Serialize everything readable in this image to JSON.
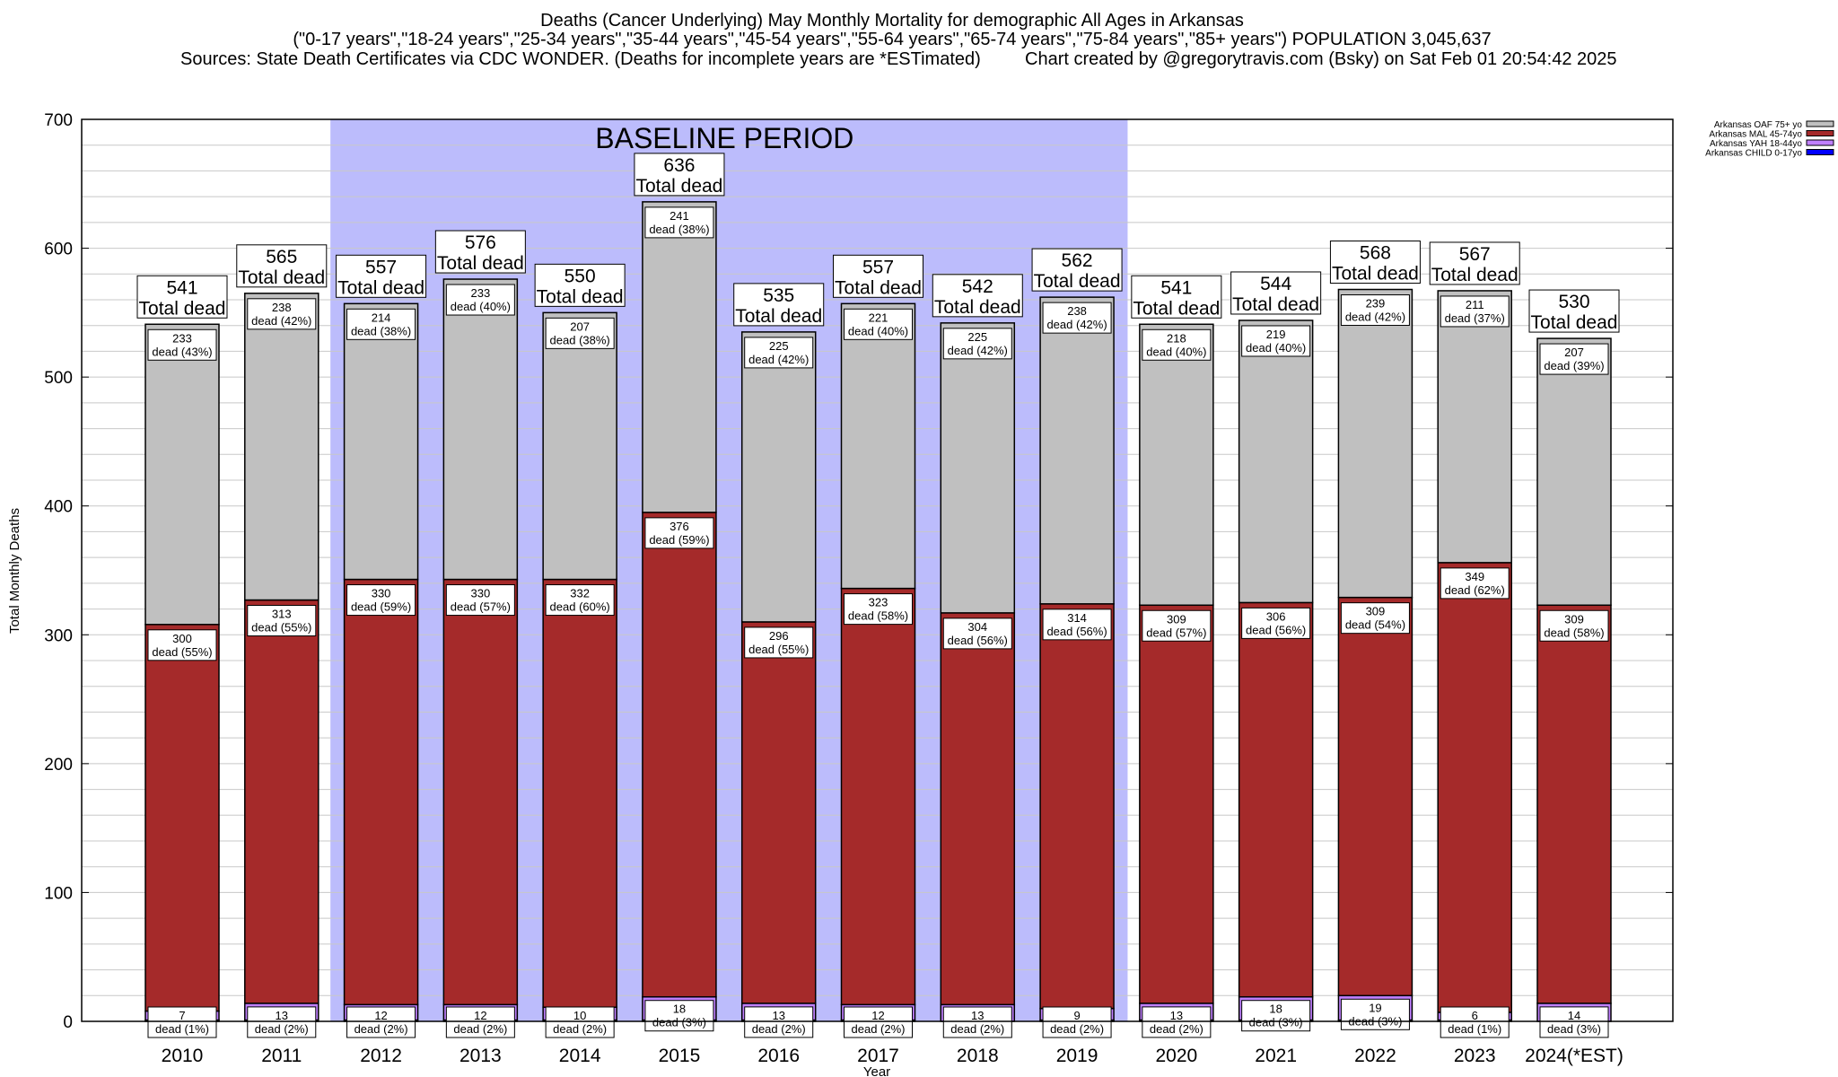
{
  "chart_data": {
    "type": "bar",
    "stacked": true,
    "title": "Deaths (Cancer Underlying) May Monthly Mortality for demographic All Ages in Arkansas",
    "subtitle": "(\"0-17 years\",\"18-24 years\",\"25-34 years\",\"35-44 years\",\"45-54 years\",\"55-64 years\",\"65-74 years\",\"75-84 years\",\"85+ years\") POPULATION 3,045,637",
    "sources": "Sources: State Death Certificates via CDC WONDER. (Deaths for incomplete years are *ESTimated)",
    "credit": "Chart created by @gregorytravis.com (Bsky) on Sat Feb 01 20:54:42 2025",
    "xlabel": "Year",
    "ylabel": "Total Monthly Deaths",
    "ylim": [
      0,
      700
    ],
    "yticks": [
      "0",
      "100",
      "200",
      "300",
      "400",
      "500",
      "600",
      "700"
    ],
    "grid": true,
    "legend_position": "top-right",
    "annotation": "BASELINE PERIOD",
    "baseline_range": [
      "2012",
      "2019"
    ],
    "baseline_color": "#bcbcfc",
    "total_label_suffix": "Total dead",
    "segment_label_word": "dead",
    "categories": [
      "2010",
      "2011",
      "2012",
      "2013",
      "2014",
      "2015",
      "2016",
      "2017",
      "2018",
      "2019",
      "2020",
      "2021",
      "2022",
      "2023",
      "2024(*EST)"
    ],
    "totals": [
      541,
      565,
      557,
      576,
      550,
      636,
      535,
      557,
      542,
      562,
      541,
      544,
      568,
      567,
      530
    ],
    "series": [
      {
        "name": "Arkansas OAF 75+ yo",
        "color": "#c0c0c0",
        "values": [
          233,
          238,
          214,
          233,
          207,
          241,
          225,
          221,
          225,
          238,
          218,
          219,
          239,
          211,
          207
        ],
        "percents": [
          43,
          42,
          38,
          40,
          38,
          38,
          42,
          40,
          42,
          42,
          40,
          40,
          42,
          37,
          39
        ]
      },
      {
        "name": "Arkansas MAL 45-74yo",
        "color": "#a52a2a",
        "values": [
          300,
          313,
          330,
          330,
          332,
          376,
          296,
          323,
          304,
          314,
          309,
          306,
          309,
          349,
          309
        ],
        "percents": [
          55,
          55,
          59,
          57,
          60,
          59,
          55,
          58,
          56,
          56,
          57,
          56,
          54,
          62,
          58
        ]
      },
      {
        "name": "Arkansas YAH 18-44yo",
        "color": "#c080ff",
        "values": [
          7,
          13,
          12,
          12,
          10,
          18,
          13,
          12,
          13,
          9,
          13,
          18,
          19,
          6,
          14
        ],
        "percents": [
          1,
          2,
          2,
          2,
          2,
          3,
          2,
          2,
          2,
          2,
          2,
          3,
          3,
          1,
          3
        ]
      },
      {
        "name": "Arkansas CHILD 0-17yo",
        "color": "#0000ff"
      }
    ]
  }
}
